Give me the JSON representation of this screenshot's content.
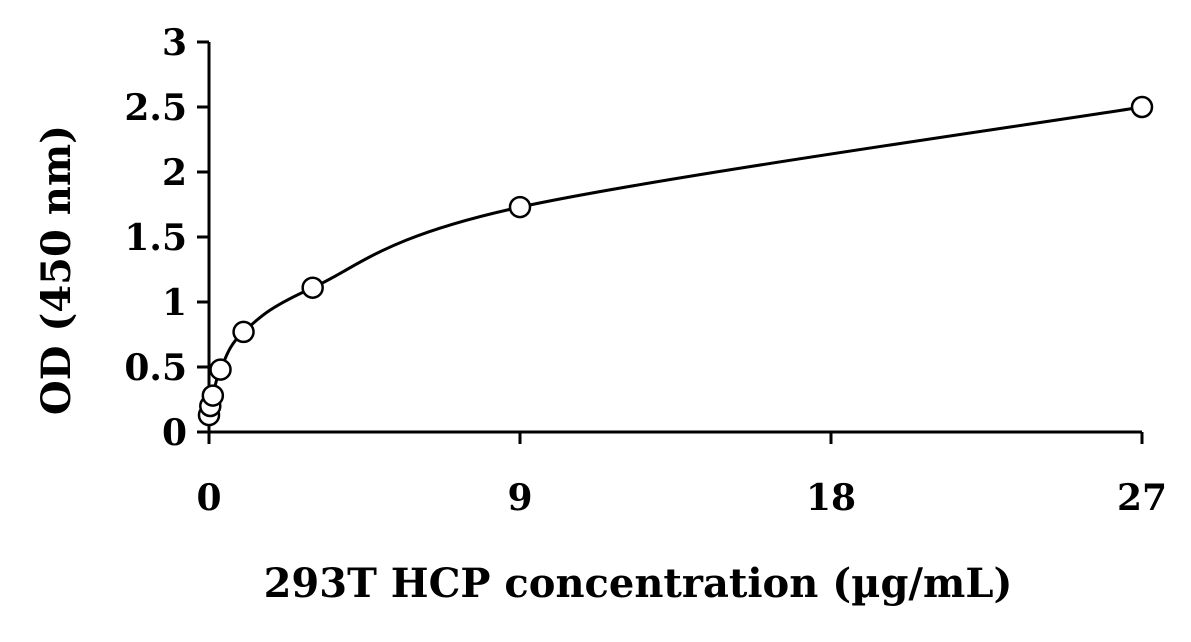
{
  "chart_data": {
    "type": "scatter",
    "title": "",
    "xlabel": "293T HCP concentration (µg/mL)",
    "ylabel": "OD (450 nm)",
    "xlim": [
      0,
      27
    ],
    "ylim": [
      0,
      3
    ],
    "x_ticks": [
      0,
      9,
      18,
      27
    ],
    "y_ticks": [
      0,
      0.5,
      1,
      1.5,
      2,
      2.5,
      3
    ],
    "x_tick_labels": [
      "0",
      "9",
      "18",
      "27"
    ],
    "y_tick_labels": [
      "0",
      "0.5",
      "1",
      "1.5",
      "2",
      "2.5",
      "3"
    ],
    "grid": false,
    "legend": "none",
    "fit_line": "smooth curve through points",
    "series": [
      {
        "marker": "open-circle",
        "x": [
          0,
          0.037,
          0.111,
          0.333,
          1,
          3,
          9,
          27
        ],
        "y": [
          0.13,
          0.2,
          0.28,
          0.48,
          0.77,
          1.11,
          1.73,
          2.5
        ]
      }
    ],
    "colors": {
      "axis": "#000000",
      "line": "#000000",
      "marker_fill": "#ffffff",
      "marker_stroke": "#000000"
    }
  }
}
